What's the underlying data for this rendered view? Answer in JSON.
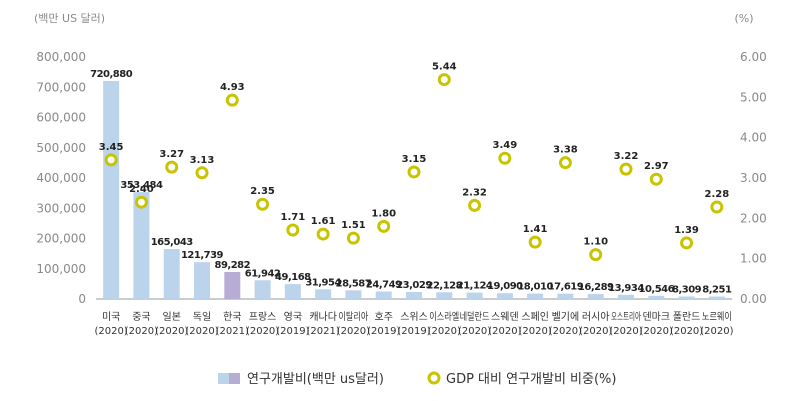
{
  "chart_data": {
    "type": "bar+scatter",
    "left_axis": {
      "unit": "(백만 US 달러)",
      "ylim": [
        0,
        800000
      ],
      "ticks": [
        "0",
        "100,000",
        "200,000",
        "300,000",
        "400,000",
        "500,000",
        "600,000",
        "700,000",
        "800,000"
      ]
    },
    "right_axis": {
      "unit": "(%)",
      "ylim": [
        0,
        6
      ],
      "ticks": [
        "0.00",
        "1.00",
        "2.00",
        "3.00",
        "4.00",
        "5.00",
        "6.00"
      ]
    },
    "categories": [
      {
        "name": "미국",
        "year": "(2020)"
      },
      {
        "name": "중국",
        "year": "(2020)"
      },
      {
        "name": "일본",
        "year": "(2020)"
      },
      {
        "name": "독일",
        "year": "(2020)"
      },
      {
        "name": "한국",
        "year": "(2021)"
      },
      {
        "name": "프랑스",
        "year": "(2020)"
      },
      {
        "name": "영국",
        "year": "(2019)"
      },
      {
        "name": "캐나다",
        "year": "(2021)"
      },
      {
        "name": "이탈리아",
        "year": "(2020)"
      },
      {
        "name": "호주",
        "year": "(2019)"
      },
      {
        "name": "스위스",
        "year": "(2019)"
      },
      {
        "name": "이스라엘",
        "year": "(2020)"
      },
      {
        "name": "네덜란드",
        "year": "(2020)"
      },
      {
        "name": "스웨덴",
        "year": "(2020)"
      },
      {
        "name": "스페인",
        "year": "(2020)"
      },
      {
        "name": "벨기에",
        "year": "(2020)"
      },
      {
        "name": "러시아",
        "year": "(2020)"
      },
      {
        "name": "오스트리아",
        "year": "(2020)"
      },
      {
        "name": "덴마크",
        "year": "(2020)"
      },
      {
        "name": "폴란드",
        "year": "(2020)"
      },
      {
        "name": "노르웨이",
        "year": "(2020)"
      }
    ],
    "series": [
      {
        "name": "연구개발비(백만 us달러)",
        "kind": "bar",
        "values": [
          720880,
          353484,
          165043,
          121739,
          89282,
          61942,
          49168,
          31954,
          28587,
          24749,
          23029,
          22128,
          21124,
          19090,
          18010,
          17619,
          16289,
          13934,
          10546,
          8309,
          8251
        ],
        "labels": [
          "720,880",
          "353,484",
          "165,043",
          "121,739",
          "89,282",
          "61,942",
          "49,168",
          "31,954",
          "28,587",
          "24,749",
          "23,029",
          "22,128",
          "21,124",
          "19,090",
          "18,010",
          "17,619",
          "16,289",
          "13,934",
          "10,546",
          "8,309",
          "8,251"
        ],
        "color": "#bcd3ec",
        "highlight_index": 4,
        "highlight_color": "#b7acd3"
      },
      {
        "name": "GDP 대비 연구개발비 비중(%)",
        "kind": "scatter",
        "values": [
          3.45,
          2.4,
          3.27,
          3.13,
          4.93,
          2.35,
          1.71,
          1.61,
          1.51,
          1.8,
          3.15,
          5.44,
          2.32,
          3.49,
          1.41,
          3.38,
          1.1,
          3.22,
          2.97,
          1.39,
          2.28
        ],
        "labels": [
          "3.45",
          "2.40",
          "3.27",
          "3.13",
          "4.93",
          "2.35",
          "1.71",
          "1.61",
          "1.51",
          "1.80",
          "3.15",
          "5.44",
          "2.32",
          "3.49",
          "1.41",
          "3.38",
          "1.10",
          "3.22",
          "2.97",
          "1.39",
          "2.28"
        ],
        "color": "#c8c400"
      }
    ],
    "legend": {
      "position": "bottom-center"
    }
  }
}
